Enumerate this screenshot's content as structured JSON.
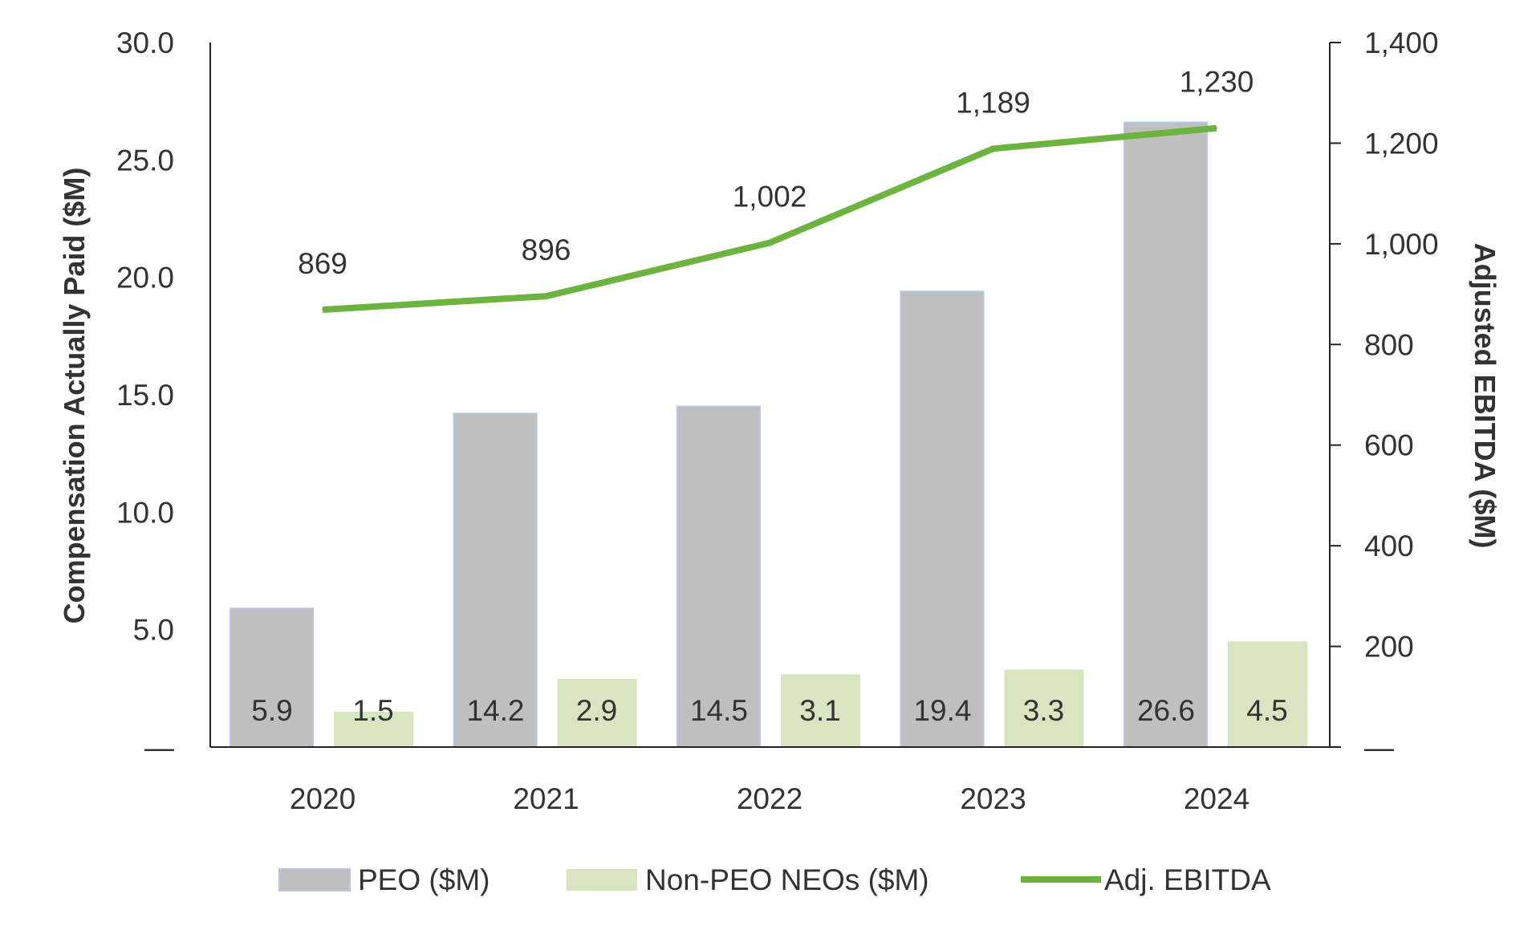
{
  "chart_data": {
    "type": "bar+line",
    "categories": [
      "2020",
      "2021",
      "2022",
      "2023",
      "2024"
    ],
    "series": [
      {
        "name": "PEO ($M)",
        "type": "bar",
        "axis": "left",
        "values": [
          5.9,
          14.2,
          14.5,
          19.4,
          26.6
        ],
        "labels": [
          "5.9",
          "14.2",
          "14.5",
          "19.4",
          "26.6"
        ],
        "color": "#bfbfbf",
        "border": "#b4c7e7"
      },
      {
        "name": "Non-PEO NEOs ($M)",
        "type": "bar",
        "axis": "left",
        "values": [
          1.5,
          2.9,
          3.1,
          3.3,
          4.5
        ],
        "labels": [
          "1.5",
          "2.9",
          "3.1",
          "3.3",
          "4.5"
        ],
        "color": "#d9e4c0"
      },
      {
        "name": "Adj. EBITDA",
        "type": "line",
        "axis": "right",
        "values": [
          869,
          896,
          1002,
          1189,
          1230
        ],
        "labels": [
          "869",
          "896",
          "1,002",
          "1,189",
          "1,230"
        ],
        "color": "#6db33f"
      }
    ],
    "ylabel": "Compensation Actually Paid ($M)",
    "y2label": "Adjusted EBITDA ($M)",
    "ylim": [
      0,
      30
    ],
    "y2lim": [
      0,
      1400
    ],
    "yticks": [
      "—",
      "5.0",
      "10.0",
      "15.0",
      "20.0",
      "25.0",
      "30.0"
    ],
    "y2ticks": [
      "—",
      "200",
      "400",
      "600",
      "800",
      "1,000",
      "1,200",
      "1,400"
    ],
    "grid": false,
    "legend": "bottom"
  }
}
